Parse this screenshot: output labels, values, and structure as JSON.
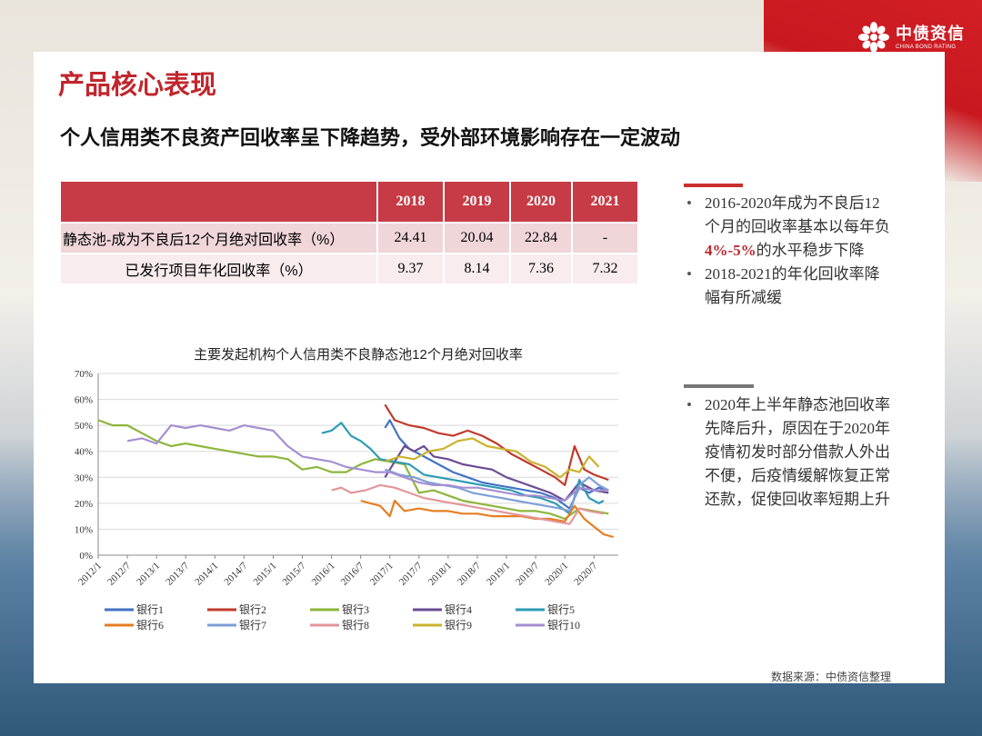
{
  "brand": {
    "name_cn": "中债资信",
    "name_en": "CHINA BOND RATING",
    "red": "#c9181f"
  },
  "page_title": "产品核心表现",
  "headline": "个人信用类不良资产回收率呈下降趋势，受外部环境影响存在一定波动",
  "table": {
    "headers": [
      "",
      "2018",
      "2019",
      "2020",
      "2021"
    ],
    "rows": [
      {
        "label": "静态池-成为不良后12个月绝对回收率（%）",
        "values": [
          "24.41",
          "20.04",
          "22.84",
          "-"
        ]
      },
      {
        "label": "已发行项目年化回收率（%）",
        "values": [
          "9.37",
          "8.14",
          "7.36",
          "7.32"
        ]
      }
    ]
  },
  "notes": [
    {
      "before": "2016-2020年成为不良后12个月的回收率基本以每年负",
      "highlight": "4%-5%",
      "after": "的水平稳步下降"
    },
    {
      "before": "2018-2021的年化回收率降幅有所减缓",
      "highlight": "",
      "after": ""
    },
    {
      "before": "2020年上半年静态池回收率先降后升，原因在于2020年疫情初发时部分借款人外出不便，后疫情缓解恢复正常还款，促使回收率短期上升",
      "highlight": "",
      "after": ""
    }
  ],
  "source": "数据来源：中债资信整理",
  "chart_data": {
    "type": "line",
    "title": "主要发起机构个人信用类不良静态池12个月绝对回收率",
    "x_ticks": [
      "2012/1",
      "2012/7",
      "2013/1",
      "2013/7",
      "2014/1",
      "2014/7",
      "2015/1",
      "2015/7",
      "2016/1",
      "2016/7",
      "2017/1",
      "2017/7",
      "2018/1",
      "2018/7",
      "2019/1",
      "2019/7",
      "2020/1",
      "2020/7"
    ],
    "y_ticks": [
      "0%",
      "10%",
      "20%",
      "30%",
      "40%",
      "50%",
      "60%",
      "70%"
    ],
    "ylim": [
      0,
      0.7
    ],
    "grid": "horizontal",
    "legend_position": "bottom",
    "series": [
      {
        "name": "银行1",
        "color": "#4472c4",
        "points": [
          [
            "2016/12",
            0.49
          ],
          [
            "2017/1",
            0.52
          ],
          [
            "2017/3",
            0.45
          ],
          [
            "2017/5",
            0.41
          ],
          [
            "2017/8",
            0.38
          ],
          [
            "2017/11",
            0.35
          ],
          [
            "2018/2",
            0.32
          ],
          [
            "2018/5",
            0.3
          ],
          [
            "2018/8",
            0.28
          ],
          [
            "2018/11",
            0.27
          ],
          [
            "2019/2",
            0.26
          ],
          [
            "2019/5",
            0.25
          ],
          [
            "2019/8",
            0.24
          ],
          [
            "2019/11",
            0.22
          ],
          [
            "2020/2",
            0.18
          ],
          [
            "2020/4",
            0.26
          ],
          [
            "2020/6",
            0.24
          ],
          [
            "2020/8",
            0.26
          ],
          [
            "2020/10",
            0.25
          ]
        ]
      },
      {
        "name": "银行2",
        "color": "#c0392b",
        "points": [
          [
            "2016/12",
            0.58
          ],
          [
            "2017/2",
            0.52
          ],
          [
            "2017/5",
            0.5
          ],
          [
            "2017/8",
            0.49
          ],
          [
            "2017/11",
            0.47
          ],
          [
            "2018/2",
            0.46
          ],
          [
            "2018/5",
            0.48
          ],
          [
            "2018/8",
            0.46
          ],
          [
            "2018/11",
            0.43
          ],
          [
            "2019/2",
            0.39
          ],
          [
            "2019/5",
            0.36
          ],
          [
            "2019/8",
            0.33
          ],
          [
            "2019/11",
            0.3
          ],
          [
            "2020/1",
            0.27
          ],
          [
            "2020/3",
            0.42
          ],
          [
            "2020/5",
            0.33
          ],
          [
            "2020/7",
            0.31
          ],
          [
            "2020/10",
            0.29
          ]
        ]
      },
      {
        "name": "银行3",
        "color": "#8db53a",
        "points": [
          [
            "2012/1",
            0.52
          ],
          [
            "2012/4",
            0.5
          ],
          [
            "2012/7",
            0.5
          ],
          [
            "2012/10",
            0.47
          ],
          [
            "2013/1",
            0.44
          ],
          [
            "2013/4",
            0.42
          ],
          [
            "2013/7",
            0.43
          ],
          [
            "2013/10",
            0.42
          ],
          [
            "2014/1",
            0.41
          ],
          [
            "2014/4",
            0.4
          ],
          [
            "2014/7",
            0.39
          ],
          [
            "2014/10",
            0.38
          ],
          [
            "2015/1",
            0.38
          ],
          [
            "2015/4",
            0.37
          ],
          [
            "2015/7",
            0.33
          ],
          [
            "2015/10",
            0.34
          ],
          [
            "2016/1",
            0.32
          ],
          [
            "2016/4",
            0.32
          ],
          [
            "2016/7",
            0.35
          ],
          [
            "2016/10",
            0.37
          ],
          [
            "2017/1",
            0.36
          ],
          [
            "2017/4",
            0.35
          ],
          [
            "2017/7",
            0.24
          ],
          [
            "2017/10",
            0.25
          ],
          [
            "2018/1",
            0.23
          ],
          [
            "2018/4",
            0.21
          ],
          [
            "2018/7",
            0.2
          ],
          [
            "2018/10",
            0.19
          ],
          [
            "2019/1",
            0.18
          ],
          [
            "2019/4",
            0.17
          ],
          [
            "2019/7",
            0.17
          ],
          [
            "2019/10",
            0.16
          ],
          [
            "2020/1",
            0.14
          ],
          [
            "2020/4",
            0.18
          ],
          [
            "2020/7",
            0.17
          ],
          [
            "2020/10",
            0.16
          ]
        ]
      },
      {
        "name": "银行4",
        "color": "#6a4c93",
        "points": [
          [
            "2016/12",
            0.3
          ],
          [
            "2017/2",
            0.36
          ],
          [
            "2017/4",
            0.42
          ],
          [
            "2017/6",
            0.4
          ],
          [
            "2017/8",
            0.42
          ],
          [
            "2017/10",
            0.38
          ],
          [
            "2018/1",
            0.37
          ],
          [
            "2018/4",
            0.35
          ],
          [
            "2018/7",
            0.34
          ],
          [
            "2018/10",
            0.33
          ],
          [
            "2019/1",
            0.3
          ],
          [
            "2019/4",
            0.28
          ],
          [
            "2019/7",
            0.26
          ],
          [
            "2019/10",
            0.24
          ],
          [
            "2020/1",
            0.21
          ],
          [
            "2020/4",
            0.28
          ],
          [
            "2020/7",
            0.25
          ],
          [
            "2020/10",
            0.24
          ]
        ]
      },
      {
        "name": "银行5",
        "color": "#2e9bb4",
        "points": [
          [
            "2015/11",
            0.47
          ],
          [
            "2016/1",
            0.48
          ],
          [
            "2016/3",
            0.51
          ],
          [
            "2016/5",
            0.46
          ],
          [
            "2016/7",
            0.44
          ],
          [
            "2016/9",
            0.41
          ],
          [
            "2016/11",
            0.37
          ],
          [
            "2017/2",
            0.36
          ],
          [
            "2017/5",
            0.35
          ],
          [
            "2017/8",
            0.31
          ],
          [
            "2017/11",
            0.3
          ],
          [
            "2018/2",
            0.29
          ],
          [
            "2018/5",
            0.28
          ],
          [
            "2018/8",
            0.27
          ],
          [
            "2018/11",
            0.26
          ],
          [
            "2019/2",
            0.25
          ],
          [
            "2019/5",
            0.23
          ],
          [
            "2019/8",
            0.22
          ],
          [
            "2019/11",
            0.2
          ],
          [
            "2020/2",
            0.16
          ],
          [
            "2020/4",
            0.29
          ],
          [
            "2020/6",
            0.22
          ],
          [
            "2020/8",
            0.2
          ],
          [
            "2020/9",
            0.21
          ]
        ]
      },
      {
        "name": "银行6",
        "color": "#e67e22",
        "points": [
          [
            "2016/7",
            0.21
          ],
          [
            "2016/9",
            0.2
          ],
          [
            "2016/11",
            0.19
          ],
          [
            "2017/1",
            0.15
          ],
          [
            "2017/2",
            0.21
          ],
          [
            "2017/4",
            0.17
          ],
          [
            "2017/7",
            0.18
          ],
          [
            "2017/10",
            0.17
          ],
          [
            "2018/1",
            0.17
          ],
          [
            "2018/4",
            0.16
          ],
          [
            "2018/7",
            0.16
          ],
          [
            "2018/10",
            0.15
          ],
          [
            "2019/1",
            0.15
          ],
          [
            "2019/4",
            0.15
          ],
          [
            "2019/7",
            0.14
          ],
          [
            "2019/10",
            0.14
          ],
          [
            "2020/1",
            0.13
          ],
          [
            "2020/3",
            0.19
          ],
          [
            "2020/5",
            0.14
          ],
          [
            "2020/7",
            0.11
          ],
          [
            "2020/9",
            0.08
          ],
          [
            "2020/11",
            0.07
          ]
        ]
      },
      {
        "name": "银行7",
        "color": "#7e9fd6",
        "points": [
          [
            "2016/12",
            0.33
          ],
          [
            "2017/3",
            0.31
          ],
          [
            "2017/6",
            0.3
          ],
          [
            "2017/9",
            0.28
          ],
          [
            "2017/12",
            0.27
          ],
          [
            "2018/3",
            0.26
          ],
          [
            "2018/6",
            0.24
          ],
          [
            "2018/9",
            0.23
          ],
          [
            "2018/12",
            0.22
          ],
          [
            "2019/3",
            0.21
          ],
          [
            "2019/6",
            0.2
          ],
          [
            "2019/9",
            0.19
          ],
          [
            "2019/12",
            0.18
          ],
          [
            "2020/2",
            0.17
          ],
          [
            "2020/4",
            0.27
          ],
          [
            "2020/6",
            0.3
          ],
          [
            "2020/8",
            0.27
          ],
          [
            "2020/10",
            0.25
          ]
        ]
      },
      {
        "name": "银行8",
        "color": "#e3959a",
        "points": [
          [
            "2016/1",
            0.25
          ],
          [
            "2016/3",
            0.26
          ],
          [
            "2016/5",
            0.24
          ],
          [
            "2016/8",
            0.25
          ],
          [
            "2016/11",
            0.27
          ],
          [
            "2017/2",
            0.26
          ],
          [
            "2017/5",
            0.24
          ],
          [
            "2017/8",
            0.22
          ],
          [
            "2017/11",
            0.21
          ],
          [
            "2018/2",
            0.2
          ],
          [
            "2018/5",
            0.19
          ],
          [
            "2018/8",
            0.18
          ],
          [
            "2018/11",
            0.17
          ],
          [
            "2019/2",
            0.16
          ],
          [
            "2019/5",
            0.15
          ],
          [
            "2019/8",
            0.14
          ],
          [
            "2019/11",
            0.13
          ],
          [
            "2020/2",
            0.12
          ],
          [
            "2020/4",
            0.18
          ],
          [
            "2020/6",
            0.17
          ],
          [
            "2020/9",
            0.16
          ]
        ]
      },
      {
        "name": "银行9",
        "color": "#c9b32b",
        "points": [
          [
            "2016/12",
            0.36
          ],
          [
            "2017/3",
            0.38
          ],
          [
            "2017/6",
            0.37
          ],
          [
            "2017/9",
            0.4
          ],
          [
            "2017/12",
            0.41
          ],
          [
            "2018/3",
            0.44
          ],
          [
            "2018/6",
            0.45
          ],
          [
            "2018/9",
            0.42
          ],
          [
            "2018/12",
            0.41
          ],
          [
            "2019/3",
            0.4
          ],
          [
            "2019/6",
            0.36
          ],
          [
            "2019/9",
            0.34
          ],
          [
            "2019/12",
            0.3
          ],
          [
            "2020/2",
            0.33
          ],
          [
            "2020/4",
            0.32
          ],
          [
            "2020/6",
            0.38
          ],
          [
            "2020/8",
            0.34
          ]
        ]
      },
      {
        "name": "银行10",
        "color": "#a58fd1",
        "points": [
          [
            "2012/7",
            0.44
          ],
          [
            "2012/10",
            0.45
          ],
          [
            "2013/1",
            0.43
          ],
          [
            "2013/4",
            0.5
          ],
          [
            "2013/7",
            0.49
          ],
          [
            "2013/10",
            0.5
          ],
          [
            "2014/1",
            0.49
          ],
          [
            "2014/4",
            0.48
          ],
          [
            "2014/7",
            0.5
          ],
          [
            "2014/10",
            0.49
          ],
          [
            "2015/1",
            0.48
          ],
          [
            "2015/4",
            0.42
          ],
          [
            "2015/7",
            0.38
          ],
          [
            "2015/10",
            0.37
          ],
          [
            "2016/1",
            0.36
          ],
          [
            "2016/4",
            0.34
          ],
          [
            "2016/7",
            0.33
          ],
          [
            "2016/10",
            0.32
          ],
          [
            "2017/1",
            0.32
          ],
          [
            "2017/4",
            0.3
          ],
          [
            "2017/7",
            0.28
          ],
          [
            "2017/10",
            0.27
          ],
          [
            "2018/1",
            0.27
          ],
          [
            "2018/4",
            0.26
          ],
          [
            "2018/7",
            0.26
          ],
          [
            "2018/10",
            0.25
          ],
          [
            "2019/1",
            0.24
          ],
          [
            "2019/4",
            0.23
          ],
          [
            "2019/7",
            0.23
          ],
          [
            "2019/10",
            0.22
          ],
          [
            "2020/1",
            0.21
          ],
          [
            "2020/4",
            0.26
          ],
          [
            "2020/7",
            0.25
          ],
          [
            "2020/10",
            0.25
          ]
        ]
      }
    ]
  }
}
